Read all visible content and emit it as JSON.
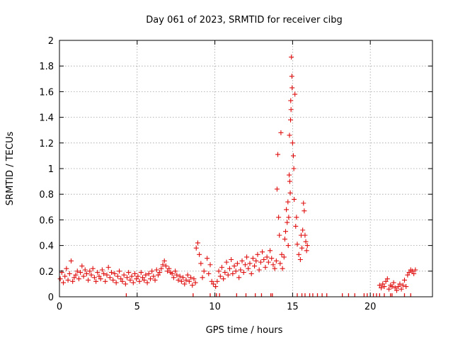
{
  "chart_data": {
    "type": "scatter",
    "title": "Day 061 of 2023, SRMTID for receiver cibg",
    "xlabel": "GPS time / hours",
    "ylabel": "SRMTID / TECUs",
    "xlim": [
      0,
      24
    ],
    "ylim": [
      0,
      2
    ],
    "x_ticks": [
      0,
      5,
      10,
      15,
      20
    ],
    "x_tick_labels": [
      "0",
      "5",
      "10",
      "15",
      "20"
    ],
    "y_ticks": [
      0,
      0.2,
      0.4,
      0.6,
      0.8,
      1,
      1.2,
      1.4,
      1.6,
      1.8,
      2
    ],
    "y_tick_labels": [
      "0",
      "0.2",
      "0.4",
      "0.6",
      "0.8",
      "1",
      "1.2",
      "1.4",
      "1.6",
      "1.8",
      "2"
    ],
    "grid": true,
    "marker": "plus",
    "series": [
      {
        "name": "SRMTID",
        "color": "#e01010",
        "x": [
          0.05,
          0.15,
          0.25,
          0.35,
          0.45,
          0.55,
          0.65,
          0.75,
          0.85,
          0.95,
          1.05,
          1.15,
          1.25,
          1.35,
          1.45,
          1.55,
          1.65,
          1.75,
          1.85,
          1.95,
          2.05,
          2.15,
          2.25,
          2.35,
          2.45,
          2.55,
          2.65,
          2.75,
          2.85,
          2.95,
          3.05,
          3.15,
          3.25,
          3.35,
          3.45,
          3.55,
          3.65,
          3.75,
          3.85,
          3.95,
          4.05,
          4.15,
          4.25,
          4.35,
          4.45,
          4.55,
          4.65,
          4.75,
          4.85,
          4.95,
          5.05,
          5.15,
          5.25,
          5.35,
          5.45,
          5.55,
          5.65,
          5.75,
          5.85,
          5.95,
          6.05,
          6.15,
          6.25,
          6.35,
          6.45,
          6.55,
          6.65,
          6.75,
          6.85,
          6.95,
          7.05,
          7.15,
          7.25,
          7.35,
          7.45,
          7.55,
          7.65,
          7.75,
          7.85,
          7.95,
          8.05,
          8.15,
          8.25,
          8.35,
          8.45,
          8.55,
          8.65,
          8.75,
          8.8,
          8.9,
          9.0,
          9.1,
          9.2,
          9.3,
          9.5,
          9.6,
          9.7,
          9.8,
          9.9,
          10.05,
          10.15,
          10.25,
          10.35,
          10.45,
          10.55,
          10.65,
          10.75,
          10.85,
          10.95,
          11.05,
          11.15,
          11.25,
          11.35,
          11.45,
          11.55,
          11.65,
          11.75,
          11.85,
          11.95,
          12.05,
          12.15,
          12.25,
          12.35,
          12.45,
          12.55,
          12.65,
          12.75,
          12.85,
          12.95,
          13.05,
          13.15,
          13.25,
          13.35,
          13.45,
          13.55,
          13.65,
          13.75,
          13.85,
          13.95,
          14.0,
          14.05,
          14.1,
          14.15,
          14.2,
          14.25,
          14.3,
          14.35,
          14.45,
          14.5,
          14.55,
          14.6,
          14.65,
          14.7,
          14.72,
          14.75,
          14.78,
          14.8,
          14.82,
          14.85,
          14.87,
          14.88,
          14.9,
          14.92,
          14.95,
          14.97,
          15.0,
          15.05,
          15.08,
          15.1,
          15.15,
          15.2,
          15.25,
          15.3,
          15.4,
          15.5,
          15.55,
          15.6,
          15.65,
          15.7,
          15.75,
          15.8,
          15.85,
          15.9,
          15.95,
          20.6,
          20.7,
          20.8,
          20.9,
          21.0,
          21.1,
          21.2,
          21.3,
          21.4,
          21.5,
          21.6,
          21.7,
          21.8,
          21.9,
          22.0,
          22.1,
          22.2,
          22.3,
          22.4,
          22.5,
          22.6,
          22.7,
          22.8,
          22.9
        ],
        "y": [
          0.14,
          0.19,
          0.11,
          0.16,
          0.22,
          0.13,
          0.18,
          0.28,
          0.12,
          0.15,
          0.17,
          0.2,
          0.14,
          0.19,
          0.24,
          0.16,
          0.21,
          0.18,
          0.13,
          0.2,
          0.17,
          0.22,
          0.15,
          0.12,
          0.19,
          0.16,
          0.14,
          0.21,
          0.18,
          0.12,
          0.17,
          0.23,
          0.15,
          0.19,
          0.13,
          0.18,
          0.11,
          0.16,
          0.2,
          0.14,
          0.12,
          0.17,
          0.1,
          0.15,
          0.19,
          0.13,
          0.16,
          0.11,
          0.18,
          0.14,
          0.16,
          0.12,
          0.19,
          0.15,
          0.13,
          0.17,
          0.11,
          0.18,
          0.14,
          0.2,
          0.16,
          0.13,
          0.21,
          0.17,
          0.19,
          0.22,
          0.25,
          0.28,
          0.24,
          0.2,
          0.22,
          0.19,
          0.18,
          0.15,
          0.2,
          0.17,
          0.13,
          0.16,
          0.12,
          0.15,
          0.1,
          0.13,
          0.17,
          0.12,
          0.15,
          0.09,
          0.14,
          0.11,
          0.38,
          0.42,
          0.33,
          0.26,
          0.15,
          0.2,
          0.3,
          0.18,
          0.25,
          0.12,
          0.1,
          0.08,
          0.12,
          0.2,
          0.16,
          0.23,
          0.14,
          0.19,
          0.27,
          0.17,
          0.22,
          0.29,
          0.18,
          0.24,
          0.2,
          0.26,
          0.15,
          0.21,
          0.28,
          0.19,
          0.25,
          0.31,
          0.22,
          0.26,
          0.18,
          0.3,
          0.24,
          0.28,
          0.33,
          0.21,
          0.27,
          0.35,
          0.29,
          0.23,
          0.31,
          0.27,
          0.36,
          0.3,
          0.25,
          0.22,
          0.28,
          0.84,
          1.11,
          0.62,
          0.48,
          0.26,
          1.28,
          0.33,
          0.22,
          0.31,
          0.45,
          0.51,
          0.68,
          0.58,
          0.74,
          0.4,
          0.62,
          0.95,
          1.26,
          0.9,
          0.81,
          1.38,
          1.53,
          1.46,
          1.87,
          1.72,
          1.63,
          1.2,
          1.1,
          1.0,
          0.76,
          1.58,
          0.55,
          0.62,
          0.41,
          0.33,
          0.29,
          0.48,
          0.38,
          0.52,
          0.73,
          0.67,
          0.48,
          0.43,
          0.36,
          0.4,
          0.09,
          0.07,
          0.1,
          0.08,
          0.12,
          0.14,
          0.06,
          0.09,
          0.08,
          0.11,
          0.07,
          0.05,
          0.08,
          0.1,
          0.06,
          0.09,
          0.13,
          0.08,
          0.17,
          0.19,
          0.21,
          0.2,
          0.18,
          0.21
        ]
      }
    ],
    "zero_markers_x": [
      4.3,
      8.6,
      9.7,
      10.1,
      10.3,
      11.4,
      12.0,
      12.6,
      13.0,
      13.6,
      13.7,
      15.3,
      15.6,
      15.8,
      16.1,
      16.3,
      16.6,
      16.9,
      17.2,
      18.2,
      18.6,
      19.0,
      19.6,
      19.8,
      20.2,
      20.4,
      20.6,
      20.9,
      21.3,
      21.4,
      22.2,
      22.6
    ]
  }
}
